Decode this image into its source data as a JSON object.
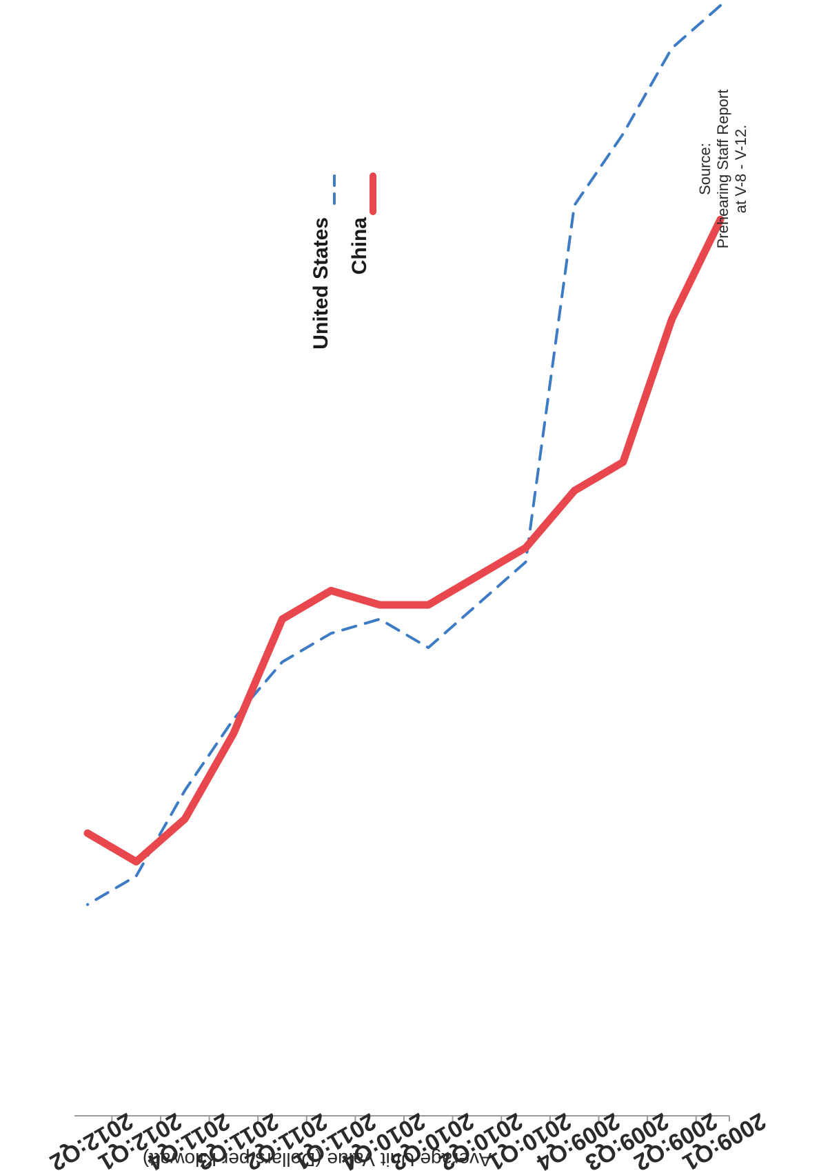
{
  "chart_data": {
    "type": "line",
    "orientation": "rotated-180",
    "ylabel": "Average Unit Value (Dollars per Kilowatt)",
    "categories": [
      "2009:Q1",
      "2009:Q2",
      "2009:Q3",
      "2009:Q4",
      "2010:Q1",
      "2010:Q2",
      "2010:Q3",
      "2010:Q4",
      "2011:Q1",
      "2011:Q2",
      "2011:Q3",
      "2011:Q4",
      "2012:Q1",
      "2012:Q2"
    ],
    "series": [
      {
        "name": "United States",
        "style": "dashed",
        "color": "#3d7cc4",
        "values": [
          1.0,
          0.97,
          0.91,
          0.86,
          0.61,
          0.58,
          0.55,
          0.57,
          0.56,
          0.54,
          0.5,
          0.45,
          0.39,
          0.37
        ]
      },
      {
        "name": "China",
        "style": "solid",
        "color": "#e8474e",
        "values": [
          0.85,
          0.78,
          0.68,
          0.66,
          0.62,
          0.6,
          0.58,
          0.58,
          0.59,
          0.57,
          0.49,
          0.43,
          0.4,
          0.42
        ]
      }
    ],
    "ylim": [
      0,
      1.05
    ],
    "grid": false,
    "legend": "top-left",
    "source_label": "Source:",
    "source_lines": [
      "Prehearing Staff Report",
      "at V-8 - V-12."
    ]
  }
}
